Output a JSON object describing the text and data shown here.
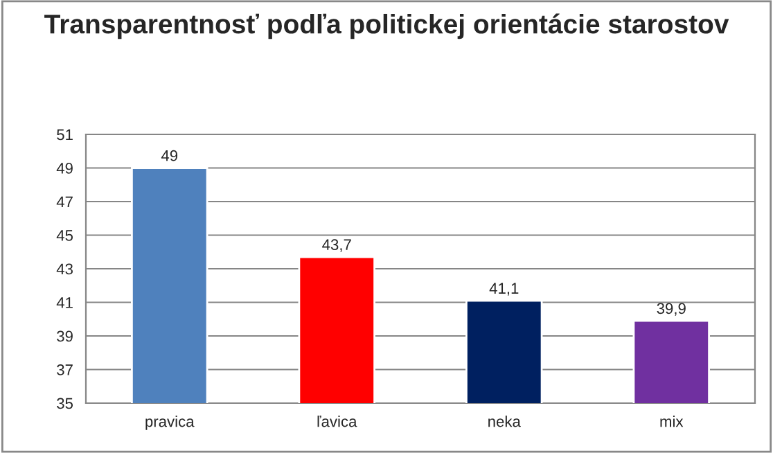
{
  "chart_data": {
    "type": "bar",
    "title": "Transparentnosť podľa politickej orientácie starostov",
    "categories": [
      "pravica",
      "ľavica",
      "neka",
      "mix"
    ],
    "values": [
      49,
      43.7,
      41.1,
      39.9
    ],
    "value_labels": [
      "49",
      "43,7",
      "41,1",
      "39,9"
    ],
    "colors": [
      "#4f81bd",
      "#ff0000",
      "#002060",
      "#7030a0"
    ],
    "ylim": [
      35,
      51
    ],
    "yticks": [
      35,
      37,
      39,
      41,
      43,
      45,
      47,
      49,
      51
    ],
    "grid": "y",
    "legend": false
  }
}
